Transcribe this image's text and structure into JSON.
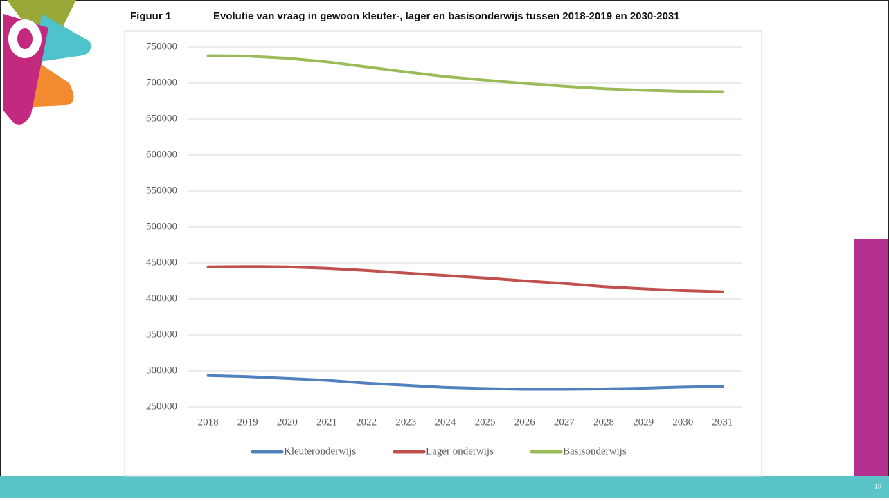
{
  "slide_number": "19",
  "chart_data": {
    "type": "line",
    "figure_label": "Figuur 1",
    "title": "Evolutie van vraag in gewoon kleuter-, lager en basisonderwijs tussen 2018-2019 en 2030-2031",
    "categories": [
      "2018",
      "2019",
      "2020",
      "2021",
      "2022",
      "2023",
      "2024",
      "2025",
      "2026",
      "2027",
      "2028",
      "2029",
      "2030",
      "2031"
    ],
    "series": [
      {
        "name": "Kleuteronderwijs",
        "color": "#4f81bd",
        "values": [
          293500,
          292000,
          289500,
          287000,
          283000,
          280000,
          277000,
          275500,
          274500,
          274500,
          275000,
          276000,
          277500,
          278500
        ]
      },
      {
        "name": "Lager onderwijs",
        "color": "#c0504d",
        "values": [
          444500,
          445000,
          444500,
          442500,
          439500,
          436000,
          432500,
          429000,
          425000,
          421500,
          417000,
          414000,
          411500,
          410000
        ]
      },
      {
        "name": "Basisonderwijs",
        "color": "#9bbb59",
        "values": [
          738000,
          737500,
          734500,
          729500,
          722500,
          715500,
          709000,
          704000,
          699500,
          695500,
          692000,
          690000,
          688500,
          688000
        ]
      }
    ],
    "ylim": [
      250000,
      750000
    ],
    "yticks": [
      250000,
      300000,
      350000,
      400000,
      450000,
      500000,
      550000,
      600000,
      650000,
      700000,
      750000
    ],
    "grid": true
  }
}
